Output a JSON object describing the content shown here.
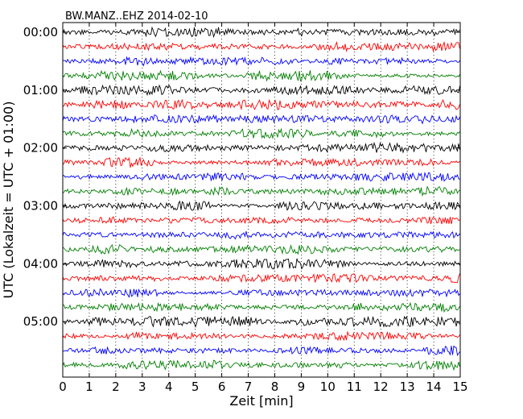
{
  "chart_data": {
    "type": "line",
    "title": "BW.MANZ..EHZ 2014-02-10",
    "xlabel": "Zeit  [min]",
    "ylabel": "UTC (Lokalzeit = UTC + 01:00)",
    "xlim": [
      0,
      15
    ],
    "x_ticks": [
      "0",
      "1",
      "2",
      "3",
      "4",
      "5",
      "6",
      "7",
      "8",
      "9",
      "10",
      "11",
      "12",
      "13",
      "14",
      "15"
    ],
    "y_tick_labels": [
      "00:00",
      "01:00",
      "02:00",
      "03:00",
      "04:00",
      "05:00"
    ],
    "trace_count": 24,
    "trace_colors": [
      "#000000",
      "#ff0000",
      "#0000ff",
      "#007f00"
    ],
    "grid": "vertical dotted at each minute"
  }
}
